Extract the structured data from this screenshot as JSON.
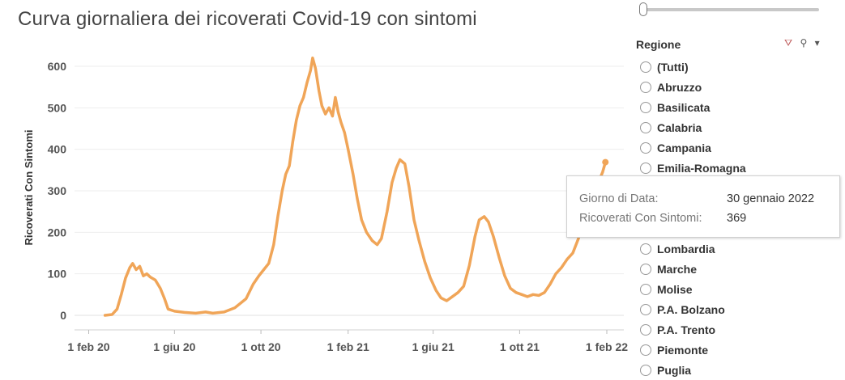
{
  "chart_data": {
    "type": "line",
    "title": "Curva giornaliera dei ricoverati Covid-19 con sintomi",
    "xlabel": "",
    "ylabel": "Ricoverati Con Sintomi",
    "ylim": [
      0,
      640
    ],
    "yticks": [
      0,
      100,
      200,
      300,
      400,
      500,
      600
    ],
    "xlim": [
      "2020-01-12",
      "2022-02-25"
    ],
    "xticks": [
      {
        "date": "2020-02-01",
        "label": "1 feb 20"
      },
      {
        "date": "2020-06-01",
        "label": "1 giu 20"
      },
      {
        "date": "2020-10-01",
        "label": "1 ott 20"
      },
      {
        "date": "2021-02-01",
        "label": "1 feb 21"
      },
      {
        "date": "2021-06-01",
        "label": "1 giu 21"
      },
      {
        "date": "2021-10-01",
        "label": "1 ott 21"
      },
      {
        "date": "2022-02-01",
        "label": "1 feb 22"
      }
    ],
    "grid": "horizontal",
    "line_color": "#F0A558",
    "series": [
      {
        "points": [
          [
            "2020-02-24",
            0
          ],
          [
            "2020-03-05",
            2
          ],
          [
            "2020-03-12",
            15
          ],
          [
            "2020-03-18",
            50
          ],
          [
            "2020-03-24",
            90
          ],
          [
            "2020-03-30",
            115
          ],
          [
            "2020-04-03",
            125
          ],
          [
            "2020-04-08",
            110
          ],
          [
            "2020-04-13",
            118
          ],
          [
            "2020-04-18",
            95
          ],
          [
            "2020-04-23",
            100
          ],
          [
            "2020-04-28",
            92
          ],
          [
            "2020-05-05",
            85
          ],
          [
            "2020-05-12",
            65
          ],
          [
            "2020-05-18",
            40
          ],
          [
            "2020-05-23",
            15
          ],
          [
            "2020-06-01",
            10
          ],
          [
            "2020-06-15",
            7
          ],
          [
            "2020-07-01",
            5
          ],
          [
            "2020-07-15",
            8
          ],
          [
            "2020-07-25",
            5
          ],
          [
            "2020-08-10",
            8
          ],
          [
            "2020-08-25",
            18
          ],
          [
            "2020-09-10",
            40
          ],
          [
            "2020-09-20",
            75
          ],
          [
            "2020-09-28",
            95
          ],
          [
            "2020-10-05",
            110
          ],
          [
            "2020-10-12",
            125
          ],
          [
            "2020-10-19",
            170
          ],
          [
            "2020-10-25",
            240
          ],
          [
            "2020-10-31",
            300
          ],
          [
            "2020-11-05",
            340
          ],
          [
            "2020-11-10",
            360
          ],
          [
            "2020-11-15",
            420
          ],
          [
            "2020-11-20",
            470
          ],
          [
            "2020-11-25",
            505
          ],
          [
            "2020-11-30",
            525
          ],
          [
            "2020-12-05",
            560
          ],
          [
            "2020-12-10",
            590
          ],
          [
            "2020-12-13",
            620
          ],
          [
            "2020-12-17",
            595
          ],
          [
            "2020-12-22",
            540
          ],
          [
            "2020-12-26",
            505
          ],
          [
            "2020-12-31",
            485
          ],
          [
            "2021-01-05",
            500
          ],
          [
            "2021-01-10",
            480
          ],
          [
            "2021-01-14",
            525
          ],
          [
            "2021-01-18",
            490
          ],
          [
            "2021-01-22",
            465
          ],
          [
            "2021-01-27",
            440
          ],
          [
            "2021-02-01",
            400
          ],
          [
            "2021-02-08",
            340
          ],
          [
            "2021-02-14",
            280
          ],
          [
            "2021-02-20",
            230
          ],
          [
            "2021-02-27",
            200
          ],
          [
            "2021-03-07",
            180
          ],
          [
            "2021-03-14",
            170
          ],
          [
            "2021-03-20",
            185
          ],
          [
            "2021-03-28",
            250
          ],
          [
            "2021-04-04",
            320
          ],
          [
            "2021-04-10",
            355
          ],
          [
            "2021-04-15",
            375
          ],
          [
            "2021-04-22",
            365
          ],
          [
            "2021-04-28",
            310
          ],
          [
            "2021-05-05",
            230
          ],
          [
            "2021-05-12",
            180
          ],
          [
            "2021-05-20",
            130
          ],
          [
            "2021-05-28",
            90
          ],
          [
            "2021-06-05",
            60
          ],
          [
            "2021-06-12",
            42
          ],
          [
            "2021-06-20",
            35
          ],
          [
            "2021-06-28",
            45
          ],
          [
            "2021-07-06",
            55
          ],
          [
            "2021-07-14",
            70
          ],
          [
            "2021-07-22",
            120
          ],
          [
            "2021-07-30",
            190
          ],
          [
            "2021-08-05",
            230
          ],
          [
            "2021-08-12",
            238
          ],
          [
            "2021-08-18",
            225
          ],
          [
            "2021-08-25",
            190
          ],
          [
            "2021-09-02",
            140
          ],
          [
            "2021-09-10",
            95
          ],
          [
            "2021-09-18",
            65
          ],
          [
            "2021-09-26",
            55
          ],
          [
            "2021-10-04",
            50
          ],
          [
            "2021-10-12",
            45
          ],
          [
            "2021-10-20",
            50
          ],
          [
            "2021-10-28",
            48
          ],
          [
            "2021-11-05",
            55
          ],
          [
            "2021-11-13",
            75
          ],
          [
            "2021-11-21",
            100
          ],
          [
            "2021-11-29",
            115
          ],
          [
            "2021-12-07",
            135
          ],
          [
            "2021-12-15",
            150
          ],
          [
            "2021-12-23",
            185
          ],
          [
            "2021-12-30",
            240
          ],
          [
            "2022-01-06",
            280
          ],
          [
            "2022-01-13",
            300
          ],
          [
            "2022-01-20",
            320
          ],
          [
            "2022-01-26",
            345
          ],
          [
            "2022-01-30",
            369
          ]
        ]
      }
    ]
  },
  "filter": {
    "title": "Regione",
    "items": [
      "(Tutti)",
      "Abruzzo",
      "Basilicata",
      "Calabria",
      "Campania",
      "Emilia-Romagna",
      "",
      "",
      "",
      "Lombardia",
      "Marche",
      "Molise",
      "P.A. Bolzano",
      "P.A. Trento",
      "Piemonte",
      "Puglia"
    ],
    "icons": [
      "clear-filter-icon",
      "search-icon",
      "dropdown-arrow-icon"
    ]
  },
  "tooltip": {
    "key1": "Giorno di Data:",
    "val1": "30 gennaio 2022",
    "key2": "Ricoverati Con Sintomi:",
    "val2": "369"
  }
}
